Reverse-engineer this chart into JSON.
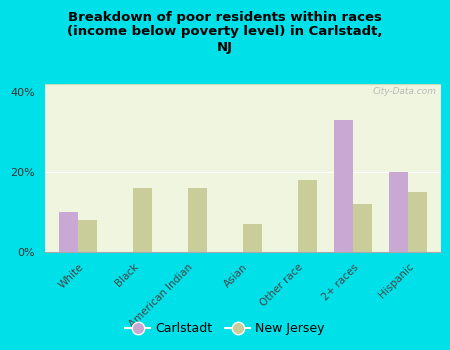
{
  "title": "Breakdown of poor residents within races\n(income below poverty level) in Carlstadt,\nNJ",
  "categories": [
    "White",
    "Black",
    "American Indian",
    "Asian",
    "Other race",
    "2+ races",
    "Hispanic"
  ],
  "carlstadt": [
    10,
    0,
    0,
    0,
    0,
    33,
    20
  ],
  "new_jersey": [
    8,
    16,
    16,
    7,
    18,
    12,
    15
  ],
  "carlstadt_color": "#c9a8d4",
  "new_jersey_color": "#c8cd9a",
  "bg_chart_top": "#b8d4a8",
  "bg_chart_bottom": "#f0f5e0",
  "bg_outer": "#00e0e8",
  "ylim": [
    0,
    42
  ],
  "yticks": [
    0,
    20,
    40
  ],
  "ytick_labels": [
    "0%",
    "20%",
    "40%"
  ],
  "bar_width": 0.35,
  "legend_carlstadt": "Carlstadt",
  "legend_nj": "New Jersey",
  "watermark": "City-Data.com"
}
